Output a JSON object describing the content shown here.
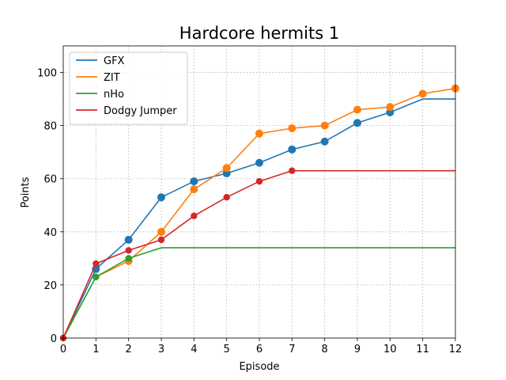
{
  "chart_data": {
    "type": "line",
    "title": "Hardcore hermits 1",
    "xlabel": "Episode",
    "ylabel": "Points",
    "xlim": [
      0,
      12
    ],
    "ylim": [
      0,
      110
    ],
    "xticks": [
      0,
      1,
      2,
      3,
      4,
      5,
      6,
      7,
      8,
      9,
      10,
      11,
      12
    ],
    "yticks": [
      0,
      20,
      40,
      60,
      80,
      100
    ],
    "grid": true,
    "legend_position": "top-left",
    "series": [
      {
        "name": "GFX",
        "color": "#1f77b4",
        "x": [
          0,
          1,
          2,
          3,
          4,
          5,
          6,
          7,
          8,
          9,
          10,
          11,
          12
        ],
        "values": [
          0,
          26,
          37,
          53,
          59,
          62,
          66,
          71,
          74,
          81,
          85,
          90,
          90
        ],
        "markers": [
          1,
          2,
          3,
          4,
          5,
          6,
          7,
          8,
          9,
          10
        ]
      },
      {
        "name": "ZIT",
        "color": "#ff7f0e",
        "x": [
          0,
          1,
          2,
          3,
          4,
          5,
          6,
          7,
          8,
          9,
          10,
          11,
          12
        ],
        "values": [
          0,
          23,
          29,
          40,
          56,
          64,
          77,
          79,
          80,
          86,
          87,
          92,
          94
        ],
        "markers": [
          2,
          3,
          4,
          5,
          6,
          7,
          8,
          9,
          10,
          11,
          12
        ]
      },
      {
        "name": "nHo",
        "color": "#2ca02c",
        "x": [
          0,
          1,
          2,
          3,
          4,
          5,
          6,
          7,
          8,
          9,
          10,
          11,
          12
        ],
        "values": [
          0,
          23,
          30,
          34,
          34,
          34,
          34,
          34,
          34,
          34,
          34,
          34,
          34
        ],
        "markers": [
          1,
          2
        ]
      },
      {
        "name": "Dodgy Jumper",
        "color": "#d62728",
        "x": [
          0,
          1,
          2,
          3,
          4,
          5,
          6,
          7,
          8,
          9,
          10,
          11,
          12
        ],
        "values": [
          0,
          28,
          33,
          37,
          46,
          53,
          59,
          63,
          63,
          63,
          63,
          63,
          63
        ],
        "markers": [
          0,
          1,
          2,
          3,
          4,
          5,
          6,
          7
        ]
      }
    ]
  }
}
